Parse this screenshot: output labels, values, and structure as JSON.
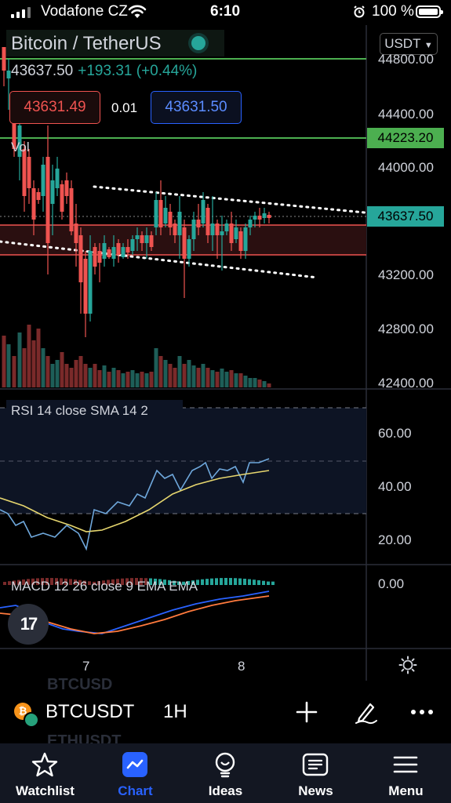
{
  "status_bar": {
    "carrier": "Vodafone CZ",
    "time": "6:10",
    "battery": "100 %"
  },
  "chart": {
    "title": "Bitcoin / TetherUS",
    "last_price": "43637.50",
    "change": "+193.31 (+0.44%)",
    "sell_price": "43631.49",
    "spread": "0.01",
    "buy_price": "43631.50",
    "volume_label": "Vol",
    "currency": "USDT",
    "price_axis": [
      "44800.00",
      "44400.00",
      "44000.00",
      "43200.00",
      "42800.00",
      "42400.00"
    ],
    "tag_green": "44223.20",
    "tag_current": "43637.50",
    "rsi_label": "RSI 14 close SMA 14 2",
    "rsi_axis": [
      "60.00",
      "40.00",
      "20.00"
    ],
    "macd_label": "MACD 12 26 close 9 EMA EMA",
    "macd_axis": [
      "0.00"
    ],
    "time_axis": [
      "7",
      "8"
    ],
    "logo_text": "17",
    "colors": {
      "up": "#26a69a",
      "down": "#ef5350",
      "rsi": "#6fa8dc",
      "rsi_ma": "#e6d66e",
      "macd": "#2962ff",
      "signal": "#ff7a3d"
    }
  },
  "symbol_bar": {
    "symbol": "BTCUSDT",
    "interval": "1H",
    "ghost_above": "BTCUSD",
    "ghost_below": "ETHUSDT",
    "icons": [
      "plus-icon",
      "pen-icon",
      "more-icon"
    ]
  },
  "tabs": [
    {
      "label": "Watchlist",
      "icon": "star-icon",
      "active": false
    },
    {
      "label": "Chart",
      "icon": "chart-icon",
      "active": true
    },
    {
      "label": "Ideas",
      "icon": "ideas-icon",
      "active": false
    },
    {
      "label": "News",
      "icon": "news-icon",
      "active": false
    },
    {
      "label": "Menu",
      "icon": "menu-icon",
      "active": false
    }
  ]
}
